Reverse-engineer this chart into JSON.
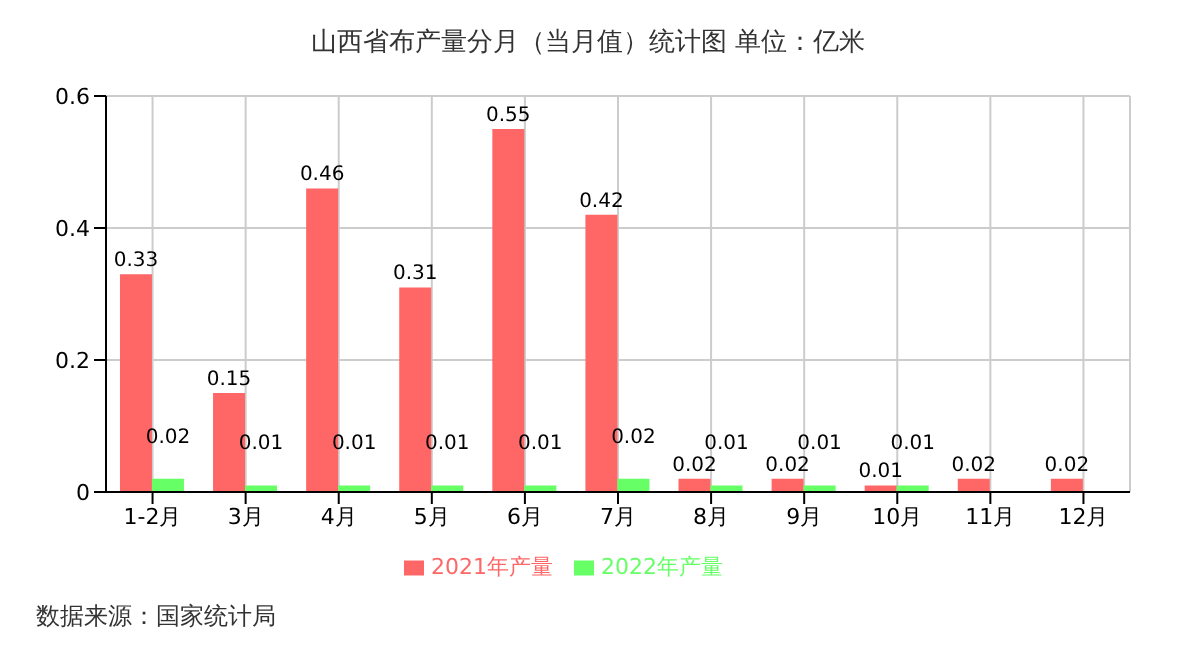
{
  "chart_data": {
    "type": "bar",
    "title": "山西省布产量分月（当月值）统计图  单位：亿米",
    "categories": [
      "1-2月",
      "3月",
      "4月",
      "5月",
      "6月",
      "7月",
      "8月",
      "9月",
      "10月",
      "11月",
      "12月"
    ],
    "series": [
      {
        "name": "2021年产量",
        "color": "#ff6666",
        "values": [
          0.33,
          0.15,
          0.46,
          0.31,
          0.55,
          0.42,
          0.02,
          0.02,
          0.01,
          0.02,
          0.02
        ]
      },
      {
        "name": "2022年产量",
        "color": "#66ff66",
        "values": [
          0.02,
          0.01,
          0.01,
          0.01,
          0.01,
          0.02,
          0.01,
          0.01,
          0.01,
          null,
          null
        ]
      }
    ],
    "ylim": [
      0,
      0.6
    ],
    "yticks": [
      0,
      0.2,
      0.4,
      0.6
    ],
    "grid": true,
    "legend": "bottom",
    "data_labels": true,
    "annotations": [
      "数据来源：国家统计局"
    ]
  }
}
